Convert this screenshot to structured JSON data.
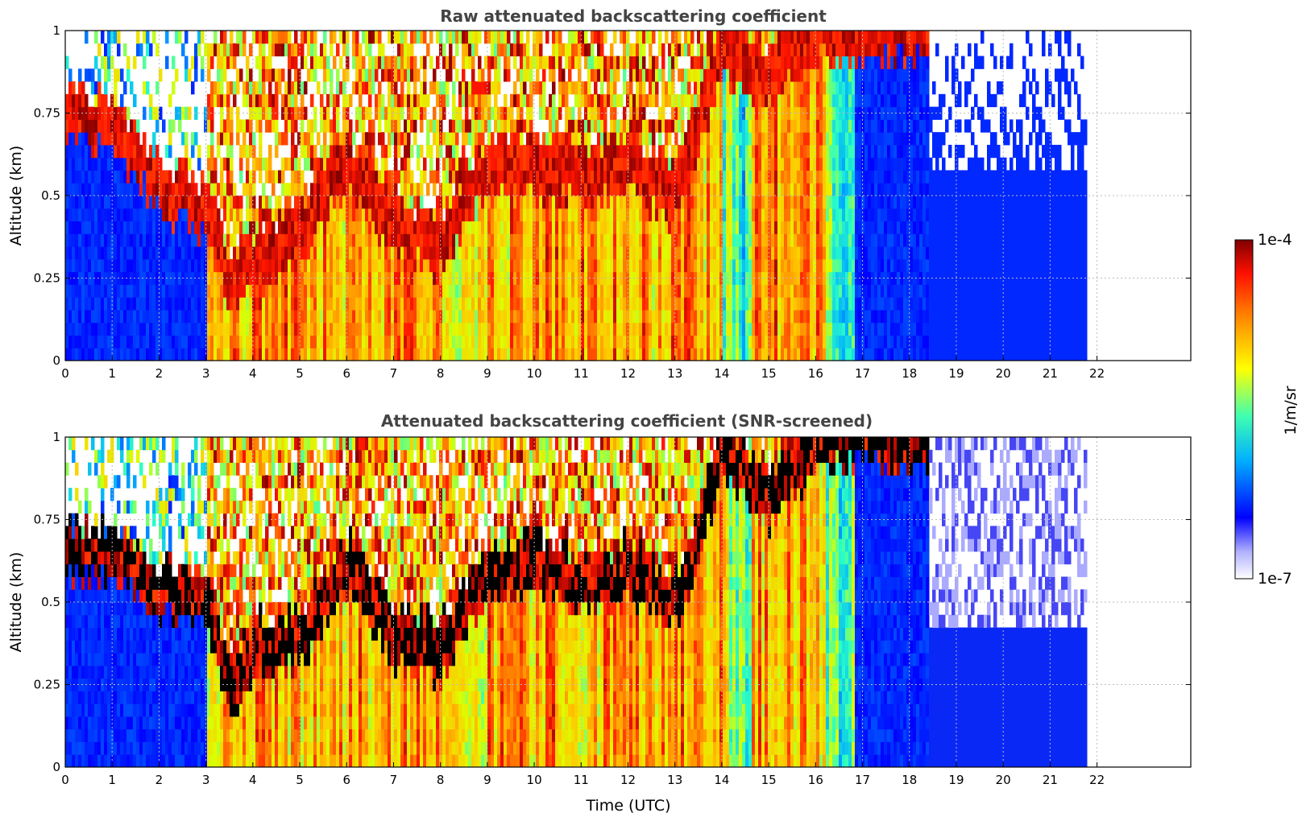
{
  "chart_data": [
    {
      "type": "heatmap",
      "title": "Raw attenuated backscattering coefficient",
      "xlabel": "",
      "ylabel": "Altitude (km)",
      "xlim": [
        0,
        24
      ],
      "ylim": [
        0,
        1
      ],
      "xticks": [
        0,
        1,
        2,
        3,
        4,
        5,
        6,
        7,
        8,
        9,
        10,
        11,
        12,
        13,
        14,
        15,
        16,
        17,
        18,
        19,
        20,
        21,
        22
      ],
      "yticks": [
        0,
        0.25,
        0.5,
        0.75,
        1
      ],
      "ytick_labels": [
        "0",
        "0.25",
        "0.5",
        "0.75",
        "1"
      ],
      "data_extent_hours": [
        0,
        21.8
      ],
      "grid": true,
      "cloud_base_km": [
        {
          "t": 0.0,
          "z": 0.72
        },
        {
          "t": 1.0,
          "z": 0.65
        },
        {
          "t": 2.0,
          "z": 0.5
        },
        {
          "t": 3.0,
          "z": 0.4
        },
        {
          "t": 3.5,
          "z": 0.2
        },
        {
          "t": 4.0,
          "z": 0.25
        },
        {
          "t": 5.0,
          "z": 0.35
        },
        {
          "t": 6.0,
          "z": 0.55
        },
        {
          "t": 7.0,
          "z": 0.35
        },
        {
          "t": 8.0,
          "z": 0.3
        },
        {
          "t": 9.0,
          "z": 0.55
        },
        {
          "t": 10.0,
          "z": 0.55
        },
        {
          "t": 11.0,
          "z": 0.5
        },
        {
          "t": 12.0,
          "z": 0.55
        },
        {
          "t": 13.0,
          "z": 0.45
        },
        {
          "t": 14.0,
          "z": 0.9
        },
        {
          "t": 15.0,
          "z": 0.8
        },
        {
          "t": 16.0,
          "z": 0.95
        }
      ]
    },
    {
      "type": "heatmap",
      "title": "Attenuated backscattering coefficient (SNR-screened)",
      "xlabel": "Time (UTC)",
      "ylabel": "Altitude (km)",
      "xlim": [
        0,
        24
      ],
      "ylim": [
        0,
        1
      ],
      "xticks": [
        0,
        1,
        2,
        3,
        4,
        5,
        6,
        7,
        8,
        9,
        10,
        11,
        12,
        13,
        14,
        15,
        16,
        17,
        18,
        19,
        20,
        21,
        22
      ],
      "yticks": [
        0,
        0.25,
        0.5,
        0.75,
        1
      ],
      "ytick_labels": [
        "0",
        "0.25",
        "0.5",
        "0.75",
        "1"
      ],
      "data_extent_hours": [
        0,
        21.8
      ],
      "grid": true,
      "cloud_base_km": [
        {
          "t": 0.0,
          "z": 0.62
        },
        {
          "t": 1.0,
          "z": 0.6
        },
        {
          "t": 2.0,
          "z": 0.5
        },
        {
          "t": 3.0,
          "z": 0.45
        },
        {
          "t": 3.5,
          "z": 0.2
        },
        {
          "t": 4.0,
          "z": 0.3
        },
        {
          "t": 5.0,
          "z": 0.35
        },
        {
          "t": 6.0,
          "z": 0.55
        },
        {
          "t": 7.0,
          "z": 0.35
        },
        {
          "t": 8.0,
          "z": 0.3
        },
        {
          "t": 9.0,
          "z": 0.55
        },
        {
          "t": 10.0,
          "z": 0.55
        },
        {
          "t": 11.0,
          "z": 0.5
        },
        {
          "t": 12.0,
          "z": 0.55
        },
        {
          "t": 13.0,
          "z": 0.45
        },
        {
          "t": 14.0,
          "z": 0.9
        },
        {
          "t": 15.0,
          "z": 0.75
        },
        {
          "t": 16.0,
          "z": 0.95
        }
      ]
    }
  ],
  "colorbar": {
    "label": "1/m/sr",
    "max_label": "1e-4",
    "min_label": "1e-7",
    "range": [
      1e-07,
      0.0001
    ],
    "scale": "log",
    "colormap": "jet",
    "stops": [
      "#e6e6fb",
      "#0000ff",
      "#00c8ff",
      "#40ffb0",
      "#ffff00",
      "#ff9000",
      "#ff2000",
      "#800000"
    ]
  }
}
